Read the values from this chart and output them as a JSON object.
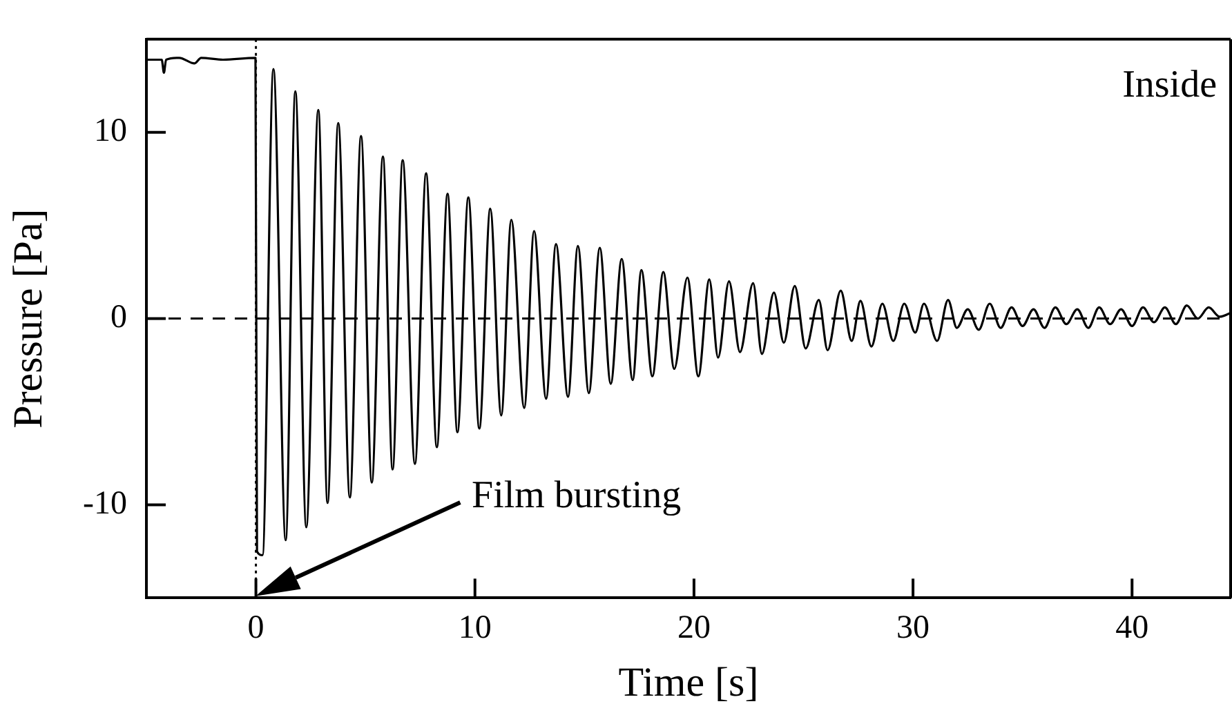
{
  "chart_data": {
    "type": "line",
    "xlabel": "Time [s]",
    "ylabel": "Pressure [Pa]",
    "xlim": [
      -5,
      44.5
    ],
    "ylim": [
      -15,
      15
    ],
    "xticks": [
      0,
      10,
      20,
      30,
      40
    ],
    "yticks": [
      -10,
      0,
      10
    ],
    "grid": false,
    "legend": false,
    "marker": "none",
    "line_style": "solid",
    "annotations": [
      "Inside",
      "Film bursting"
    ],
    "ref_lines": [
      {
        "axis": "y",
        "value": 0,
        "line_style": "dashed",
        "color": "#000000"
      },
      {
        "axis": "x",
        "value": 0,
        "line_style": "dotted",
        "color": "#000000"
      }
    ],
    "series": [
      {
        "color": "#000000",
        "x": [
          -5,
          -4.3,
          -4.2,
          -4.1,
          -3.5,
          -2.8,
          -2.5,
          -1.5,
          -0.02,
          0.05,
          0.3,
          0.8,
          1.36,
          1.8,
          2.3,
          2.85,
          3.27,
          3.76,
          4.29,
          4.8,
          5.29,
          5.8,
          6.24,
          6.7,
          7.26,
          7.77,
          8.26,
          8.75,
          9.2,
          9.7,
          10.2,
          10.7,
          11.2,
          11.66,
          12.25,
          12.7,
          13.25,
          13.7,
          14.25,
          14.7,
          15.2,
          15.7,
          16.2,
          16.7,
          17.2,
          17.6,
          18.1,
          18.6,
          19.1,
          19.7,
          20.2,
          20.7,
          21.1,
          21.6,
          22.1,
          22.7,
          23.1,
          23.65,
          24.1,
          24.6,
          25.1,
          25.7,
          26.1,
          26.7,
          27.2,
          27.6,
          28.1,
          28.6,
          29.1,
          29.6,
          30.1,
          30.5,
          31.1,
          31.6,
          32.0,
          32.5,
          33.0,
          33.5,
          34.0,
          34.5,
          35.0,
          35.5,
          36.0,
          36.5,
          37.0,
          37.5,
          38.0,
          38.5,
          39.0,
          39.5,
          40.0,
          40.5,
          41.0,
          41.5,
          42.0,
          42.5,
          43.0,
          43.5,
          44.0,
          44.5
        ],
        "values": [
          13.9,
          13.9,
          13.2,
          13.9,
          14.0,
          13.7,
          14.0,
          13.9,
          14.0,
          -12.5,
          -12.7,
          13.4,
          -11.9,
          12.2,
          -11.2,
          11.2,
          -9.9,
          10.5,
          -9.6,
          9.8,
          -8.8,
          8.7,
          -8.1,
          8.5,
          -7.8,
          7.8,
          -6.9,
          6.7,
          -6.1,
          6.5,
          -5.9,
          5.9,
          -5.2,
          5.3,
          -4.8,
          4.7,
          -4.3,
          4.0,
          -4.2,
          3.9,
          -4.0,
          3.8,
          -3.5,
          3.2,
          -3.3,
          2.6,
          -3.1,
          2.5,
          -2.7,
          2.2,
          -3.1,
          2.1,
          -2.1,
          2.0,
          -1.8,
          1.9,
          -1.9,
          1.4,
          -1.3,
          1.75,
          -1.6,
          1.0,
          -1.7,
          1.5,
          -1.2,
          0.95,
          -1.5,
          0.8,
          -1.2,
          0.8,
          -0.75,
          0.8,
          -1.2,
          1.0,
          -0.5,
          0.5,
          -0.6,
          0.8,
          -0.5,
          0.6,
          -0.4,
          0.5,
          -0.5,
          0.6,
          -0.3,
          0.5,
          -0.5,
          0.6,
          -0.3,
          0.5,
          -0.4,
          0.6,
          -0.2,
          0.6,
          -0.3,
          0.7,
          0.0,
          0.6,
          0.1,
          0.3
        ]
      }
    ]
  }
}
